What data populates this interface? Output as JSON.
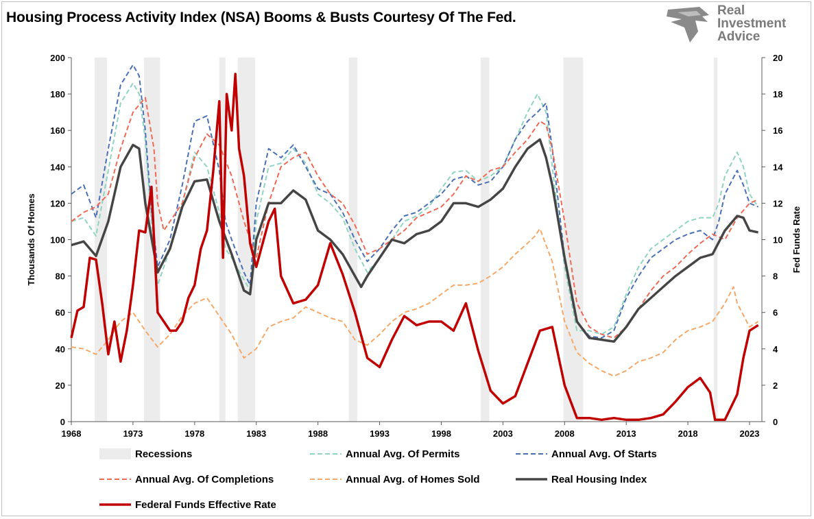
{
  "title": "Housing Process Activity Index (NSA) Booms & Busts Courtesy Of The Fed.",
  "logo": {
    "lines": [
      "Real",
      "Investment",
      "Advice"
    ],
    "icon": "eagle-head-icon"
  },
  "chart_data": {
    "type": "line",
    "ylabel": "Thousands Of Homes",
    "y2label": "Fed Funds Rate",
    "ylim": [
      0,
      200
    ],
    "y2lim": [
      0,
      20
    ],
    "xlim": [
      1968,
      2024
    ],
    "x_ticks": [
      "1968",
      "1973",
      "1978",
      "1983",
      "1988",
      "1993",
      "1998",
      "2003",
      "2008",
      "2013",
      "2018",
      "2023"
    ],
    "y_ticks": [
      0,
      20,
      40,
      60,
      80,
      100,
      120,
      140,
      160,
      180,
      200
    ],
    "y2_ticks": [
      0,
      2,
      4,
      6,
      8,
      10,
      12,
      14,
      16,
      18,
      20
    ],
    "grid": false,
    "legend_position": "bottom",
    "recessions": [
      [
        1969.9,
        1970.9
      ],
      [
        1973.9,
        1975.2
      ],
      [
        1980.0,
        1980.5
      ],
      [
        1981.5,
        1982.9
      ],
      [
        1990.5,
        1991.2
      ],
      [
        2001.2,
        2001.9
      ],
      [
        2007.9,
        2009.5
      ],
      [
        2020.1,
        2020.4
      ]
    ],
    "recessions_label": "Recessions",
    "colors": {
      "permits": "#8fd4c0",
      "starts": "#4a6fb5",
      "completions": "#ee6a55",
      "homes_sold": "#f6a868",
      "real_housing": "#454545",
      "fed_funds": "#c00000",
      "recession": "#ececec"
    },
    "series": [
      {
        "key": "permits",
        "name": "Annual Avg. Of Permits",
        "axis": "left",
        "style": "dashed",
        "x": [
          1968,
          1969,
          1970,
          1971,
          1972,
          1973,
          1973.5,
          1974,
          1974.5,
          1975,
          1976,
          1977,
          1978,
          1979,
          1980,
          1980.5,
          1981,
          1982,
          1982.5,
          1983,
          1984,
          1985,
          1986,
          1987,
          1988,
          1989,
          1990,
          1991,
          1992,
          1993,
          1994,
          1995,
          1996,
          1997,
          1998,
          1999,
          2000,
          2001,
          2002,
          2003,
          2004,
          2005,
          2005.8,
          2006.5,
          2007,
          2008,
          2009,
          2010,
          2011,
          2012,
          2013,
          2014,
          2015,
          2016,
          2017,
          2018,
          2019,
          2020,
          2020.5,
          2021,
          2022,
          2022.5,
          2023,
          2023.7
        ],
        "y": [
          110,
          112,
          102,
          138,
          175,
          186,
          180,
          155,
          110,
          75,
          95,
          120,
          148,
          140,
          115,
          95,
          90,
          78,
          72,
          110,
          140,
          142,
          150,
          142,
          125,
          120,
          112,
          95,
          82,
          90,
          100,
          110,
          113,
          118,
          128,
          137,
          138,
          132,
          135,
          140,
          155,
          170,
          180,
          170,
          140,
          85,
          50,
          50,
          48,
          52,
          70,
          85,
          95,
          100,
          105,
          110,
          112,
          112,
          120,
          135,
          148,
          140,
          125,
          118
        ]
      },
      {
        "key": "starts",
        "name": "Annual Avg. Of Starts",
        "axis": "left",
        "style": "dashed",
        "x": [
          1968,
          1969,
          1970,
          1971,
          1972,
          1973,
          1973.5,
          1974,
          1974.5,
          1975,
          1976,
          1977,
          1978,
          1979,
          1980,
          1980.5,
          1981,
          1982,
          1982.5,
          1983,
          1984,
          1985,
          1986,
          1987,
          1988,
          1989,
          1990,
          1991,
          1992,
          1993,
          1994,
          1995,
          1996,
          1997,
          1998,
          1999,
          2000,
          2001,
          2002,
          2003,
          2004,
          2005,
          2005.8,
          2006.5,
          2007,
          2008,
          2009,
          2010,
          2011,
          2012,
          2013,
          2014,
          2015,
          2016,
          2017,
          2018,
          2019,
          2020,
          2020.5,
          2021,
          2022,
          2022.5,
          2023,
          2023.7
        ],
        "y": [
          125,
          130,
          112,
          150,
          185,
          196,
          190,
          160,
          115,
          85,
          100,
          130,
          165,
          168,
          138,
          110,
          100,
          82,
          75,
          120,
          150,
          145,
          152,
          140,
          128,
          125,
          115,
          100,
          88,
          95,
          105,
          113,
          115,
          120,
          125,
          133,
          135,
          130,
          132,
          140,
          155,
          165,
          170,
          175,
          150,
          90,
          55,
          47,
          46,
          50,
          68,
          80,
          90,
          95,
          100,
          103,
          105,
          100,
          110,
          125,
          138,
          130,
          120,
          118
        ]
      },
      {
        "key": "completions",
        "name": "Annual Avg. Of Completions",
        "axis": "left",
        "style": "dashed",
        "x": [
          1968,
          1969,
          1970,
          1971,
          1972,
          1973,
          1974,
          1974.7,
          1975,
          1975.5,
          1976,
          1977,
          1978,
          1979,
          1980,
          1981,
          1982,
          1983,
          1984,
          1985,
          1986,
          1987,
          1988,
          1989,
          1990,
          1991,
          1992,
          1993,
          1994,
          1995,
          1996,
          1997,
          1998,
          1999,
          2000,
          2001,
          2002,
          2003,
          2004,
          2005,
          2006,
          2006.5,
          2007,
          2008,
          2009,
          2010,
          2011,
          2012,
          2013,
          2014,
          2015,
          2016,
          2017,
          2018,
          2019,
          2020,
          2021,
          2022,
          2023,
          2023.7
        ],
        "y": [
          110,
          115,
          118,
          125,
          150,
          170,
          178,
          150,
          120,
          105,
          110,
          120,
          145,
          158,
          152,
          135,
          110,
          90,
          120,
          140,
          145,
          148,
          135,
          125,
          120,
          108,
          92,
          95,
          100,
          105,
          112,
          115,
          118,
          125,
          135,
          132,
          138,
          140,
          148,
          155,
          165,
          163,
          150,
          110,
          65,
          52,
          48,
          46,
          52,
          62,
          72,
          80,
          85,
          92,
          98,
          103,
          100,
          112,
          120,
          122
        ]
      },
      {
        "key": "homes_sold",
        "name": "Annual Avg. of Homes Sold",
        "axis": "left",
        "style": "dashed",
        "x": [
          1968,
          1969,
          1970,
          1971,
          1972,
          1973,
          1974,
          1975,
          1976,
          1977,
          1978,
          1979,
          1980,
          1981,
          1982,
          1983,
          1984,
          1985,
          1986,
          1987,
          1988,
          1989,
          1990,
          1991,
          1992,
          1993,
          1994,
          1995,
          1996,
          1997,
          1998,
          1999,
          2000,
          2001,
          2002,
          2003,
          2004,
          2005,
          2005.6,
          2006,
          2007,
          2008,
          2009,
          2010,
          2011,
          2012,
          2013,
          2014,
          2015,
          2016,
          2017,
          2018,
          2019,
          2020,
          2021,
          2021.7,
          2022,
          2023,
          2023.7
        ],
        "y": [
          41,
          40,
          37,
          45,
          55,
          60,
          50,
          41,
          48,
          58,
          65,
          68,
          58,
          48,
          35,
          40,
          52,
          55,
          57,
          63,
          60,
          57,
          55,
          45,
          42,
          48,
          55,
          60,
          62,
          65,
          70,
          75,
          75,
          76,
          80,
          85,
          92,
          98,
          102,
          106,
          88,
          55,
          38,
          32,
          28,
          25,
          28,
          33,
          35,
          38,
          45,
          50,
          52,
          55,
          65,
          74,
          65,
          52,
          55
        ]
      },
      {
        "key": "real_housing",
        "name": "Real Housing Index",
        "axis": "left",
        "style": "solid",
        "x": [
          1968,
          1969,
          1970,
          1971,
          1972,
          1973,
          1973.5,
          1974,
          1975,
          1976,
          1977,
          1978,
          1979,
          1980,
          1981,
          1982,
          1982.5,
          1983,
          1984,
          1985,
          1986,
          1987,
          1988,
          1989,
          1990,
          1991,
          1991.5,
          1992,
          1993,
          1994,
          1995,
          1996,
          1997,
          1998,
          1999,
          2000,
          2001,
          2002,
          2003,
          2004,
          2005,
          2006,
          2006.5,
          2007,
          2008,
          2009,
          2010,
          2011,
          2012,
          2013,
          2014,
          2015,
          2016,
          2017,
          2018,
          2019,
          2020,
          2021,
          2022,
          2022.5,
          2023,
          2023.7
        ],
        "y": [
          97,
          99,
          91,
          110,
          140,
          152,
          150,
          120,
          82,
          95,
          118,
          132,
          133,
          110,
          92,
          72,
          70,
          100,
          120,
          120,
          127,
          122,
          105,
          100,
          92,
          80,
          74,
          80,
          90,
          100,
          98,
          103,
          105,
          110,
          120,
          120,
          118,
          122,
          128,
          140,
          150,
          155,
          145,
          130,
          90,
          55,
          46,
          45,
          44,
          52,
          62,
          68,
          74,
          80,
          85,
          90,
          92,
          105,
          113,
          112,
          105,
          104
        ]
      },
      {
        "key": "fed_funds",
        "name": "Federal Funds Effective Rate",
        "axis": "right",
        "style": "solid",
        "x": [
          1968,
          1968.5,
          1969,
          1969.5,
          1970,
          1970.5,
          1971,
          1971.5,
          1972,
          1972.5,
          1973,
          1973.5,
          1974,
          1974.5,
          1975,
          1975.5,
          1976,
          1976.5,
          1977,
          1977.5,
          1978,
          1978.5,
          1979,
          1979.5,
          1980,
          1980.3,
          1980.6,
          1981,
          1981.3,
          1981.6,
          1982,
          1982.5,
          1983,
          1984,
          1984.5,
          1985,
          1986,
          1987,
          1988,
          1989,
          1990,
          1991,
          1992,
          1993,
          1994,
          1995,
          1996,
          1997,
          1998,
          1999,
          2000,
          2001,
          2002,
          2003,
          2004,
          2005,
          2006,
          2007,
          2008,
          2009,
          2010,
          2011,
          2012,
          2013,
          2014,
          2015,
          2016,
          2017,
          2018,
          2019,
          2019.8,
          2020.2,
          2021,
          2022,
          2022.5,
          2023,
          2023.7
        ],
        "y": [
          4.6,
          6.1,
          6.3,
          9.0,
          8.9,
          6.5,
          3.7,
          5.5,
          3.3,
          5.0,
          7.5,
          10.5,
          10.4,
          12.9,
          6.0,
          5.5,
          5.0,
          5.0,
          5.5,
          6.8,
          7.5,
          9.5,
          10.5,
          13.7,
          17.6,
          9.0,
          18.0,
          16.0,
          19.1,
          15.0,
          13.5,
          9.8,
          8.5,
          11.0,
          11.7,
          8.0,
          6.5,
          6.7,
          7.5,
          9.8,
          8.1,
          6.0,
          3.5,
          3.0,
          4.5,
          5.8,
          5.3,
          5.5,
          5.5,
          5.0,
          6.5,
          3.9,
          1.7,
          1.0,
          1.4,
          3.2,
          5.0,
          5.2,
          2.0,
          0.2,
          0.2,
          0.1,
          0.2,
          0.1,
          0.1,
          0.2,
          0.4,
          1.1,
          1.9,
          2.4,
          1.6,
          0.1,
          0.1,
          1.5,
          3.5,
          5.0,
          5.3
        ]
      }
    ]
  }
}
